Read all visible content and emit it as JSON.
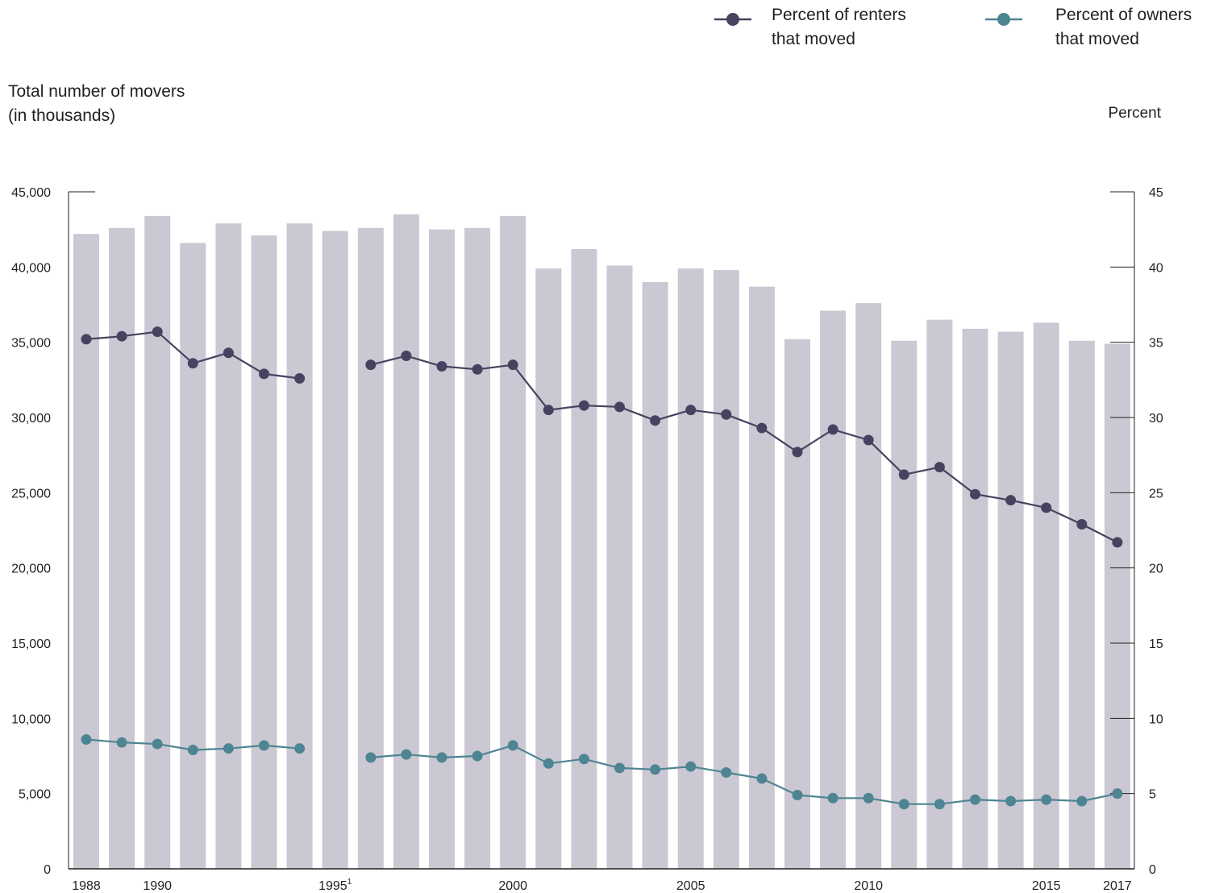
{
  "chart_data": {
    "type": "bar",
    "xlabel": "",
    "ylabel_left_line1": "Total number of movers",
    "ylabel_left_line2": "(in thousands)",
    "ylabel_right": "Percent",
    "ylim_left": [
      0,
      45000
    ],
    "ylim_right": [
      0,
      45
    ],
    "grid": false,
    "legend_position": "top-right",
    "left_ticks": [
      "0",
      "5,000",
      "10,000",
      "15,000",
      "20,000",
      "25,000",
      "30,000",
      "35,000",
      "40,000",
      "45,000"
    ],
    "right_ticks": [
      "0",
      "5",
      "10",
      "15",
      "20",
      "25",
      "30",
      "35",
      "40",
      "45"
    ],
    "x_tick_labels": [
      {
        "year": 1988,
        "label": "1988"
      },
      {
        "year": 1990,
        "label": "1990"
      },
      {
        "year": 1995,
        "label": "1995",
        "sup": "1"
      },
      {
        "year": 2000,
        "label": "2000"
      },
      {
        "year": 2005,
        "label": "2005"
      },
      {
        "year": 2010,
        "label": "2010"
      },
      {
        "year": 2015,
        "label": "2015"
      },
      {
        "year": 2017,
        "label": "2017"
      }
    ],
    "categories": [
      1988,
      1989,
      1990,
      1991,
      1992,
      1993,
      1994,
      1995,
      1996,
      1997,
      1998,
      1999,
      2000,
      2001,
      2002,
      2003,
      2004,
      2005,
      2006,
      2007,
      2008,
      2009,
      2010,
      2011,
      2012,
      2013,
      2014,
      2015,
      2016,
      2017
    ],
    "series": [
      {
        "name": "Total number of movers (in thousands)",
        "kind": "bar",
        "axis": "left",
        "color": "#cbc8d3",
        "values": [
          42200,
          42600,
          43400,
          41600,
          42900,
          42100,
          42900,
          42400,
          42600,
          43500,
          42500,
          42600,
          43400,
          39900,
          41200,
          40100,
          39000,
          39900,
          39800,
          38700,
          35200,
          37100,
          37600,
          35100,
          36500,
          35900,
          35700,
          36300,
          35100,
          34900
        ]
      },
      {
        "name": "Percent of renters that moved",
        "legend_line1": "Percent of renters",
        "legend_line2": "that moved",
        "kind": "line",
        "axis": "right",
        "color": "#47425f",
        "values": [
          35.2,
          35.4,
          35.7,
          33.6,
          34.3,
          32.9,
          32.6,
          null,
          33.5,
          34.1,
          33.4,
          33.2,
          33.5,
          30.5,
          30.8,
          30.7,
          29.8,
          30.5,
          30.2,
          29.3,
          27.7,
          29.2,
          28.5,
          26.2,
          26.7,
          24.9,
          24.5,
          24.0,
          22.9,
          21.7
        ]
      },
      {
        "name": "Percent of owners that moved",
        "legend_line1": "Percent of owners",
        "legend_line2": "that moved",
        "kind": "line",
        "axis": "right",
        "color": "#4d8592",
        "values": [
          8.6,
          8.4,
          8.3,
          7.9,
          8.0,
          8.2,
          8.0,
          null,
          7.4,
          7.6,
          7.4,
          7.5,
          8.2,
          7.0,
          7.3,
          6.7,
          6.6,
          6.8,
          6.4,
          6.0,
          4.9,
          4.7,
          4.7,
          4.3,
          4.3,
          4.6,
          4.5,
          4.6,
          4.5,
          5.0
        ]
      }
    ]
  }
}
